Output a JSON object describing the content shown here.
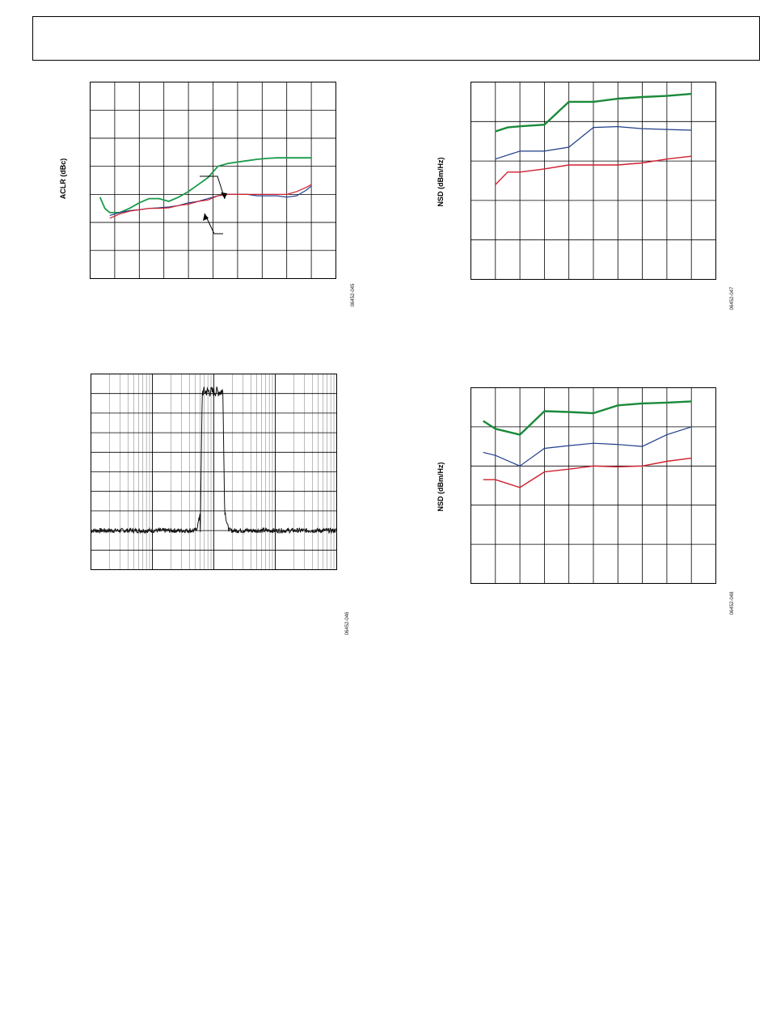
{
  "page": {
    "header": ""
  },
  "charts": {
    "aclr": {
      "ylabel": "ACLR (dBc)",
      "fig_id": "06452-045"
    },
    "spectrum": {
      "fig_id": "06452-046"
    },
    "nsd_top": {
      "ylabel": "NSD (dBm/Hz)",
      "fig_id": "06452-047"
    },
    "nsd_bottom": {
      "ylabel": "NSD (dBm/Hz)",
      "fig_id": "06452-048"
    }
  },
  "chart_data": [
    {
      "id": "aclr",
      "type": "line",
      "title": "",
      "xlabel": "",
      "ylabel": "ACLR (dBc)",
      "xlim": [
        0,
        10
      ],
      "ylim": [
        0,
        7
      ],
      "grid": {
        "x_divisions": 10,
        "y_divisions": 7
      },
      "series": [
        {
          "color": "#1a9a4a",
          "width": 1.8,
          "x": [
            0.4,
            0.6,
            0.8,
            1.2,
            1.6,
            2.0,
            2.4,
            2.8,
            3.2,
            3.6,
            4.0,
            4.4,
            4.8,
            5.2,
            5.6,
            6.0,
            6.4,
            6.8,
            7.2,
            7.6,
            8.0,
            8.4,
            8.8,
            9.0
          ],
          "y": [
            2.9,
            2.5,
            2.35,
            2.35,
            2.5,
            2.7,
            2.85,
            2.85,
            2.75,
            2.9,
            3.1,
            3.35,
            3.6,
            4.0,
            4.1,
            4.15,
            4.2,
            4.25,
            4.28,
            4.3,
            4.3,
            4.3,
            4.3,
            4.3
          ]
        },
        {
          "color": "#1f3d8a",
          "width": 1.2,
          "x": [
            0.8,
            1.2,
            1.6,
            2.0,
            2.4,
            2.8,
            3.2,
            3.6,
            4.0,
            4.4,
            4.8,
            5.2,
            5.6,
            6.0,
            6.4,
            6.8,
            7.2,
            7.6,
            8.0,
            8.4,
            8.8,
            9.0
          ],
          "y": [
            2.25,
            2.35,
            2.42,
            2.45,
            2.5,
            2.52,
            2.55,
            2.6,
            2.7,
            2.75,
            2.85,
            2.95,
            3.0,
            3.0,
            3.0,
            2.95,
            2.95,
            2.95,
            2.9,
            2.95,
            3.15,
            3.3
          ]
        },
        {
          "color": "#d01f2e",
          "width": 1.2,
          "x": [
            0.8,
            1.2,
            1.6,
            2.0,
            2.4,
            2.8,
            3.2,
            3.6,
            4.0,
            4.4,
            4.8,
            5.2,
            5.6,
            6.0,
            6.4,
            6.8,
            7.2,
            7.6,
            8.0,
            8.4,
            8.8,
            9.0
          ],
          "y": [
            2.15,
            2.3,
            2.4,
            2.45,
            2.5,
            2.5,
            2.52,
            2.6,
            2.65,
            2.75,
            2.8,
            2.95,
            3.0,
            3.0,
            3.0,
            3.0,
            3.0,
            3.0,
            3.0,
            3.1,
            3.25,
            3.35
          ]
        }
      ]
    },
    {
      "id": "spectrum",
      "type": "line",
      "title": "",
      "xlabel": "",
      "ylabel": "",
      "xlim": [
        0,
        10
      ],
      "ylim": [
        0,
        10
      ],
      "grid": {
        "y_divisions": 10,
        "x_log_decades": 4
      },
      "series": [
        {
          "color": "#111111",
          "width": 1.0,
          "noise_floor": 2.0,
          "band_start": 4.45,
          "band_end": 5.45,
          "band_level": 9.1,
          "noise_amplitude": 0.12
        }
      ]
    },
    {
      "id": "nsd_top",
      "type": "line",
      "title": "",
      "xlabel": "",
      "ylabel": "NSD (dBm/Hz)",
      "xlim": [
        0,
        10
      ],
      "ylim": [
        0,
        5
      ],
      "grid": {
        "x_divisions": 10,
        "y_divisions": 5
      },
      "series": [
        {
          "color": "#1a8a3a",
          "width": 2.4,
          "x": [
            1,
            1.5,
            2,
            3,
            4,
            5,
            6,
            7,
            8,
            9
          ],
          "y": [
            3.75,
            3.85,
            3.88,
            3.92,
            4.5,
            4.5,
            4.58,
            4.62,
            4.65,
            4.7
          ]
        },
        {
          "color": "#1f3d8a",
          "width": 1.2,
          "x": [
            1,
            1.5,
            2,
            3,
            4,
            5,
            6,
            7,
            8,
            9
          ],
          "y": [
            3.05,
            3.15,
            3.25,
            3.25,
            3.35,
            3.85,
            3.87,
            3.82,
            3.8,
            3.78
          ]
        },
        {
          "color": "#d01f2e",
          "width": 1.4,
          "x": [
            1,
            1.5,
            2,
            3,
            4,
            5,
            6,
            7,
            8,
            9
          ],
          "y": [
            2.4,
            2.72,
            2.72,
            2.8,
            2.9,
            2.9,
            2.9,
            2.95,
            3.05,
            3.12
          ]
        }
      ]
    },
    {
      "id": "nsd_bottom",
      "type": "line",
      "title": "",
      "xlabel": "",
      "ylabel": "NSD (dBm/Hz)",
      "xlim": [
        0,
        10
      ],
      "ylim": [
        0,
        5
      ],
      "grid": {
        "x_divisions": 10,
        "y_divisions": 5
      },
      "series": [
        {
          "color": "#1a8a3a",
          "width": 2.4,
          "x": [
            0.5,
            1,
            2,
            3,
            4,
            5,
            6,
            7,
            8,
            9
          ],
          "y": [
            4.15,
            3.95,
            3.8,
            4.4,
            4.38,
            4.35,
            4.55,
            4.6,
            4.62,
            4.65
          ]
        },
        {
          "color": "#1f3d8a",
          "width": 1.2,
          "x": [
            0.5,
            1,
            2,
            3,
            4,
            5,
            6,
            7,
            8,
            9
          ],
          "y": [
            3.35,
            3.27,
            3.0,
            3.45,
            3.52,
            3.58,
            3.55,
            3.5,
            3.8,
            4.0
          ]
        },
        {
          "color": "#d01f2e",
          "width": 1.4,
          "x": [
            0.5,
            1,
            2,
            3,
            4,
            5,
            6,
            7,
            8,
            9
          ],
          "y": [
            2.65,
            2.65,
            2.45,
            2.85,
            2.92,
            3.0,
            2.98,
            3.0,
            3.12,
            3.2
          ]
        }
      ]
    }
  ]
}
